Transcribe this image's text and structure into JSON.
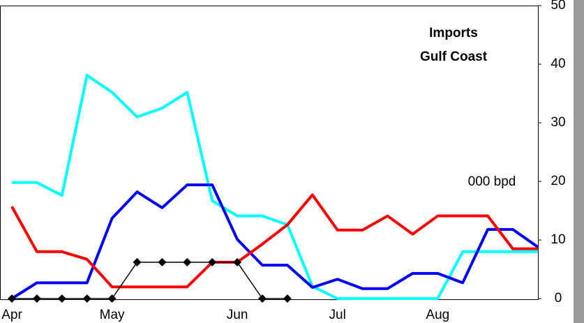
{
  "chart_data": {
    "type": "line",
    "title": "Imports",
    "subtitle": "Gulf Coast",
    "annotation": "000 bpd",
    "categories": [
      "Apr",
      null,
      null,
      null,
      "May",
      null,
      null,
      null,
      null,
      "Jun",
      null,
      null,
      null,
      "Jul",
      null,
      null,
      null,
      "Aug",
      null,
      null,
      null,
      null
    ],
    "series": [
      {
        "color": "#00ffff",
        "values": [
          19.8,
          19.8,
          17.6,
          38.1,
          35.2,
          31,
          32.5,
          35.2,
          16.7,
          14.1,
          14.1,
          12.6,
          2.1,
          0,
          0,
          0,
          0,
          0,
          8,
          8,
          8,
          8
        ]
      },
      {
        "color": "#0000ff",
        "values": [
          0,
          2.7,
          2.7,
          2.7,
          13.7,
          18.2,
          15.5,
          19.4,
          19.4,
          10.1,
          5.7,
          5.7,
          1.9,
          3.3,
          1.7,
          1.7,
          4.3,
          4.3,
          2.7,
          11.8,
          11.8,
          8.8
        ]
      },
      {
        "color": "#ff0000",
        "values": [
          15.7,
          8,
          8,
          6.7,
          2,
          2,
          2,
          2,
          6.2,
          6.2,
          9.3,
          12.6,
          17.7,
          11.7,
          11.7,
          14.1,
          11,
          14.1,
          14.1,
          14.1,
          8.5,
          8.5
        ]
      },
      {
        "color": "#000000",
        "marker": "diamond",
        "values": [
          0,
          0,
          0,
          0,
          0,
          6.2,
          6.2,
          6.2,
          6.2,
          6.2,
          0,
          0,
          null,
          null,
          null,
          null,
          null,
          null,
          null,
          null,
          null,
          null
        ]
      }
    ],
    "ylim": [
      0,
      50
    ],
    "yticks": [
      0,
      10,
      20,
      30,
      40,
      50
    ],
    "yaxis_side": "right",
    "grid": false
  }
}
